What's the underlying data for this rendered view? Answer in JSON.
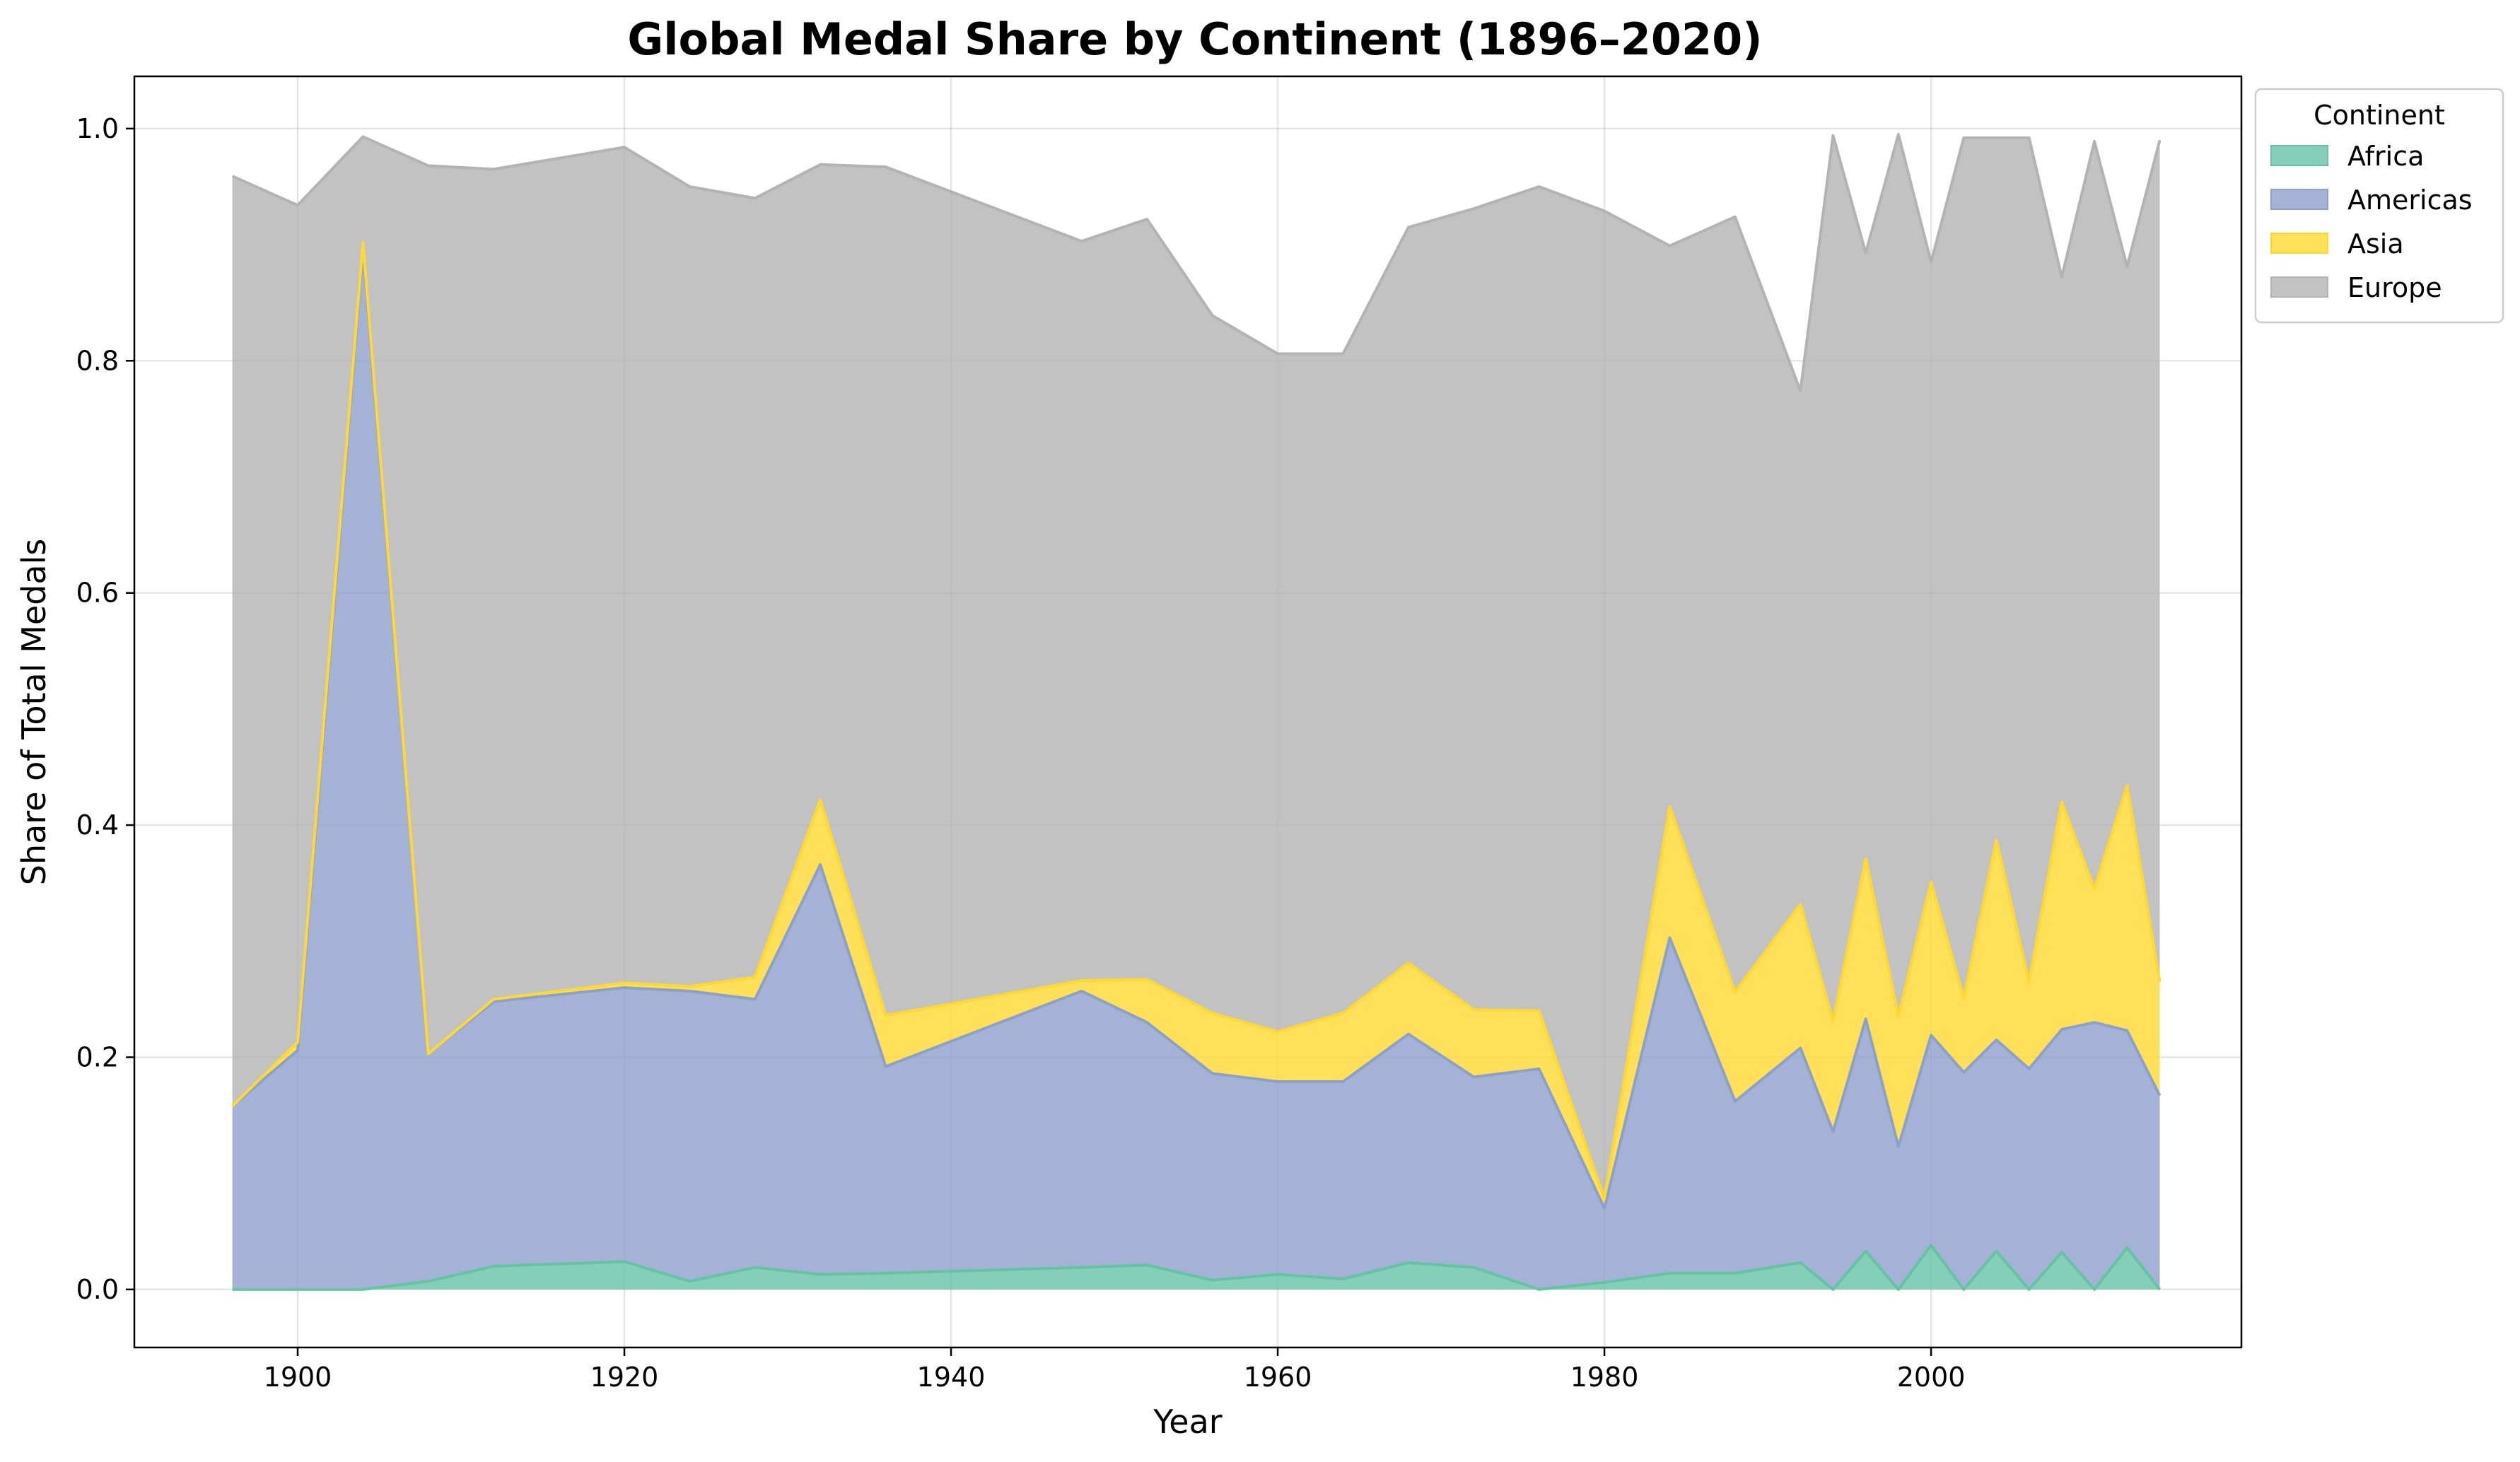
{
  "chart_data": {
    "type": "area",
    "stacked": true,
    "title": "Global Medal Share by Continent (1896–2020)",
    "xlabel": "Year",
    "ylabel": "Share of Total Medals",
    "xlim": [
      1890,
      2019
    ],
    "ylim": [
      -0.05,
      1.045
    ],
    "xticks": [
      1900,
      1920,
      1940,
      1960,
      1980,
      2000
    ],
    "yticks": [
      0.0,
      0.2,
      0.4,
      0.6,
      0.8,
      1.0
    ],
    "ytick_labels": [
      "0.0",
      "0.2",
      "0.4",
      "0.6",
      "0.8",
      "1.0"
    ],
    "grid": true,
    "legend": {
      "title": "Continent",
      "placement": "outside upper-right"
    },
    "x": [
      1896,
      1900,
      1904,
      1908,
      1912,
      1920,
      1924,
      1928,
      1932,
      1936,
      1948,
      1952,
      1956,
      1960,
      1964,
      1968,
      1972,
      1976,
      1980,
      1984,
      1988,
      1992,
      1994,
      1996,
      1998,
      2000,
      2002,
      2004,
      2006,
      2008,
      2010,
      2012,
      2014
    ],
    "series": [
      {
        "name": "Africa",
        "color": "#66c2a5",
        "values": [
          0.0,
          0.0,
          0.0,
          0.007,
          0.02,
          0.024,
          0.007,
          0.019,
          0.013,
          0.014,
          0.019,
          0.021,
          0.008,
          0.013,
          0.009,
          0.023,
          0.019,
          0.0,
          0.006,
          0.014,
          0.014,
          0.023,
          0.0,
          0.033,
          0.0,
          0.038,
          0.0,
          0.033,
          0.0,
          0.032,
          0.0,
          0.036,
          0.0
        ]
      },
      {
        "name": "Americas",
        "color": "#8da0cb",
        "values": [
          0.158,
          0.206,
          0.896,
          0.196,
          0.228,
          0.236,
          0.25,
          0.231,
          0.353,
          0.178,
          0.238,
          0.209,
          0.178,
          0.166,
          0.17,
          0.197,
          0.164,
          0.19,
          0.064,
          0.289,
          0.148,
          0.185,
          0.136,
          0.2,
          0.123,
          0.181,
          0.187,
          0.182,
          0.19,
          0.192,
          0.23,
          0.187,
          0.167
        ]
      },
      {
        "name": "Asia",
        "color": "#ffd92f",
        "values": [
          0.0,
          0.007,
          0.006,
          0.0,
          0.002,
          0.004,
          0.004,
          0.019,
          0.056,
          0.044,
          0.009,
          0.037,
          0.052,
          0.043,
          0.059,
          0.061,
          0.058,
          0.05,
          0.008,
          0.113,
          0.094,
          0.124,
          0.095,
          0.138,
          0.112,
          0.132,
          0.064,
          0.172,
          0.075,
          0.196,
          0.115,
          0.211,
          0.098
        ]
      },
      {
        "name": "Europe",
        "color": "#b3b3b3",
        "values": [
          0.801,
          0.721,
          0.091,
          0.765,
          0.715,
          0.72,
          0.689,
          0.671,
          0.547,
          0.731,
          0.637,
          0.655,
          0.601,
          0.584,
          0.568,
          0.634,
          0.69,
          0.71,
          0.851,
          0.483,
          0.668,
          0.442,
          0.763,
          0.522,
          0.76,
          0.534,
          0.741,
          0.605,
          0.727,
          0.452,
          0.644,
          0.447,
          0.725
        ]
      }
    ]
  }
}
